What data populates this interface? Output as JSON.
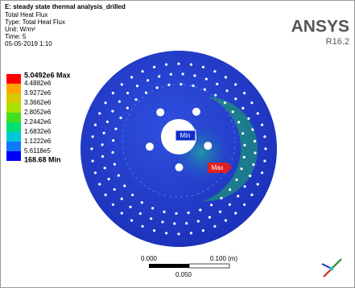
{
  "header": {
    "title": "E: steady state thermal analysis_drilled",
    "lines": [
      "Total Heat Flux",
      "Type: Total Heat Flux",
      "Unit: W/m²",
      "Time: 5",
      "05-05-2019 1:10"
    ]
  },
  "logo": {
    "name": "ANSYS",
    "version": "R16.2"
  },
  "legend": {
    "labels": [
      "5.0492e6 Max",
      "4.4882e6",
      "3.9272e6",
      "3.3662e6",
      "2.8052e6",
      "2.2442e6",
      "1.6832e6",
      "1.1222e6",
      "5.6118e5",
      "168.68 Min"
    ],
    "colors": [
      "#ff0000",
      "#ffa500",
      "#d8c800",
      "#a8e000",
      "#40e020",
      "#00e070",
      "#00c8d8",
      "#1078ff",
      "#0000ff"
    ]
  },
  "probes": {
    "min": "Min",
    "max": "Max"
  },
  "scale_bar": {
    "left": "0.000",
    "right": "0.100 (m)",
    "middle": "0.050"
  }
}
